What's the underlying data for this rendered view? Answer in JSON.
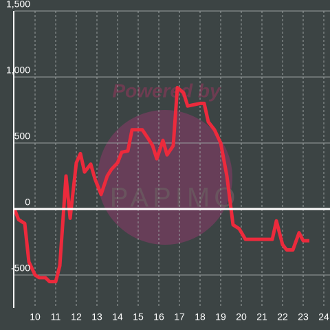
{
  "chart_data": {
    "type": "line",
    "watermark": [
      "Powered by",
      "PAPIMO"
    ],
    "x": [
      9.0,
      9.2,
      9.5,
      9.7,
      10.0,
      10.2,
      10.5,
      10.7,
      11.0,
      11.2,
      11.5,
      11.7,
      12.0,
      12.2,
      12.4,
      12.7,
      12.9,
      13.2,
      13.5,
      13.7,
      14.0,
      14.2,
      14.5,
      14.7,
      15.0,
      15.2,
      15.5,
      15.7,
      15.9,
      16.2,
      16.4,
      16.7,
      16.9,
      17.2,
      17.4,
      17.7,
      18.0,
      18.2,
      18.4,
      18.7,
      19.0,
      19.3,
      19.6,
      19.9,
      20.2,
      20.5,
      21.0,
      21.5,
      21.7,
      22.0,
      22.2,
      22.5,
      22.8,
      23.0,
      23.3
    ],
    "series": [
      {
        "color": "#ec2a3c",
        "values": [
          0,
          -80,
          -110,
          -400,
          -500,
          -520,
          -520,
          -550,
          -550,
          -430,
          250,
          -70,
          350,
          420,
          280,
          340,
          230,
          110,
          250,
          300,
          350,
          430,
          440,
          600,
          600,
          600,
          530,
          480,
          380,
          520,
          410,
          480,
          920,
          880,
          780,
          790,
          800,
          800,
          660,
          600,
          500,
          250,
          -120,
          -150,
          -230,
          -230,
          -230,
          -230,
          -90,
          -270,
          -310,
          -310,
          -180,
          -240,
          -240
        ]
      }
    ],
    "xlim": [
      9,
      24.3
    ],
    "xticks": [
      10,
      11,
      12,
      13,
      14,
      15,
      16,
      17,
      18,
      19,
      20,
      21,
      22,
      23,
      24
    ],
    "ylim": [
      -750,
      1500
    ],
    "yticks": [
      {
        "value": 1500,
        "label": "1,500"
      },
      {
        "value": 1000,
        "label": "1,000"
      },
      500,
      0,
      -500
    ],
    "grid": true
  }
}
